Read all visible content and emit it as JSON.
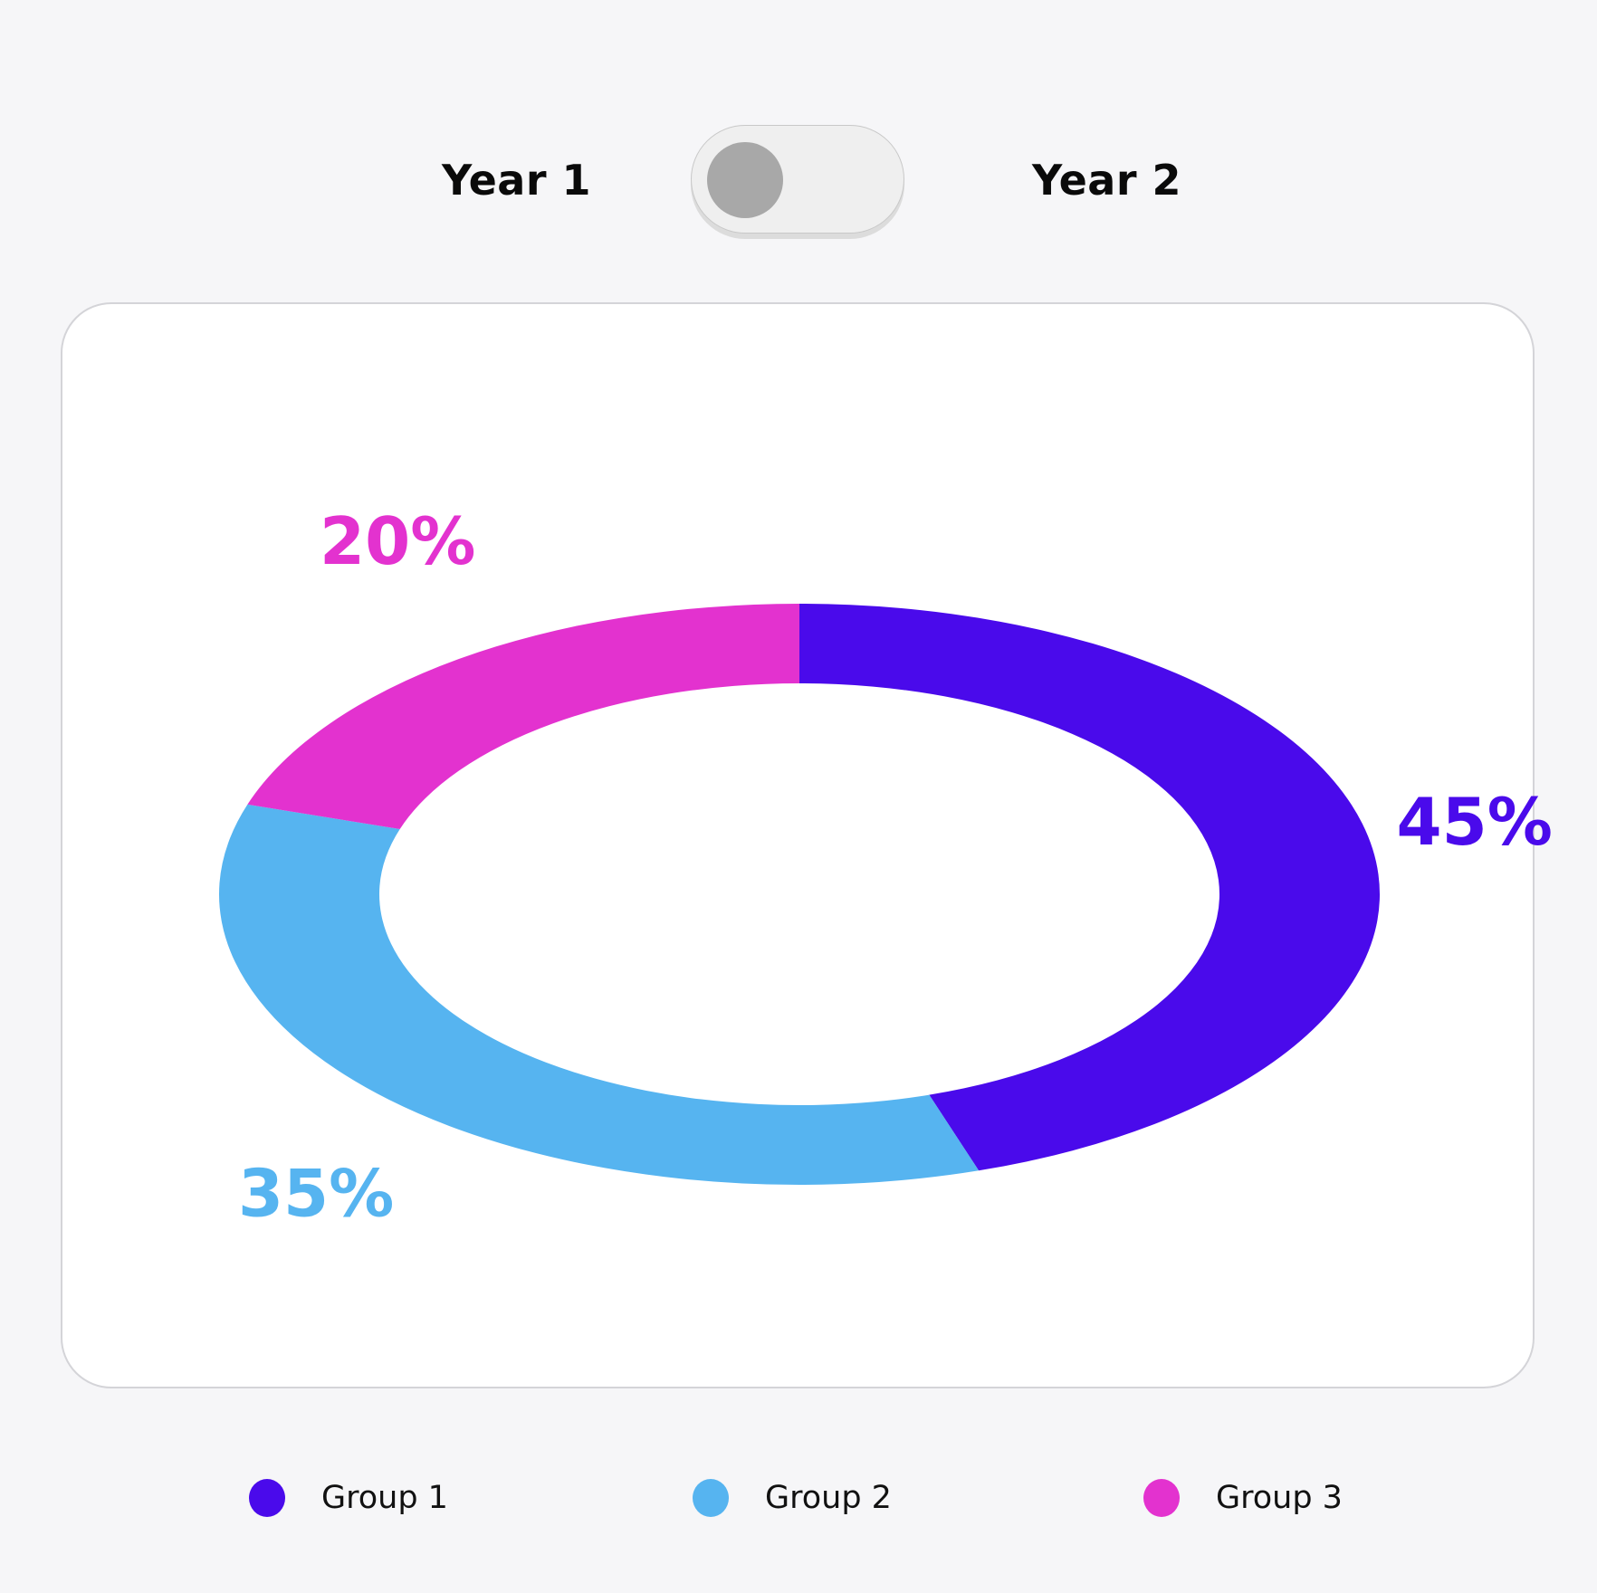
{
  "toggle": {
    "left_label": "Year 1",
    "right_label": "Year 2",
    "selected": "Year 1"
  },
  "colors": {
    "group1": "#4a0aeb",
    "group2": "#56b4f0",
    "group3": "#e332cf",
    "background": "#f6f6f8",
    "card": "#ffffff"
  },
  "chart_data": {
    "type": "pie",
    "variant": "donut",
    "categories": [
      "Group 1",
      "Group 2",
      "Group 3"
    ],
    "values": [
      45,
      35,
      20
    ],
    "labels": [
      "45%",
      "35%",
      "20%"
    ],
    "colors": [
      "#4a0aeb",
      "#56b4f0",
      "#e332cf"
    ],
    "legend_position": "bottom",
    "start_angle": "top, clockwise"
  },
  "legend": {
    "items": [
      {
        "label": "Group 1",
        "color": "#4a0aeb"
      },
      {
        "label": "Group 2",
        "color": "#56b4f0"
      },
      {
        "label": "Group 3",
        "color": "#e332cf"
      }
    ]
  }
}
